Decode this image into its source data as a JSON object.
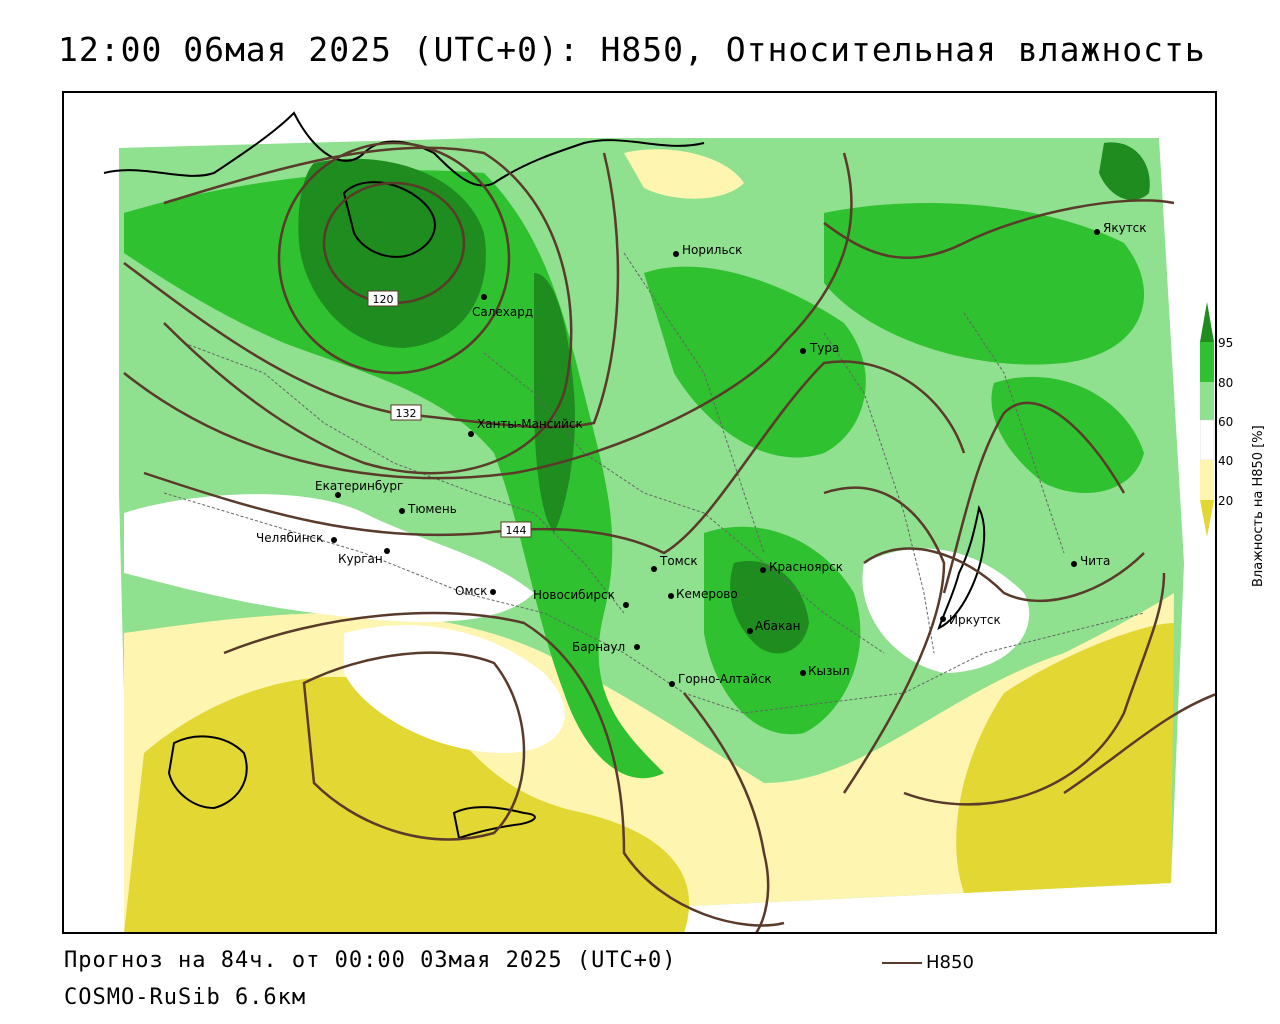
{
  "title": "12:00 06мая 2025 (UTC+0): H850, Относительная влажность",
  "footer": {
    "forecast": "Прогноз на 84ч. от 00:00 03мая 2025 (UTC+0)",
    "model": "COSMO-RuSib 6.6км",
    "line_key_label": "H850"
  },
  "legend": {
    "title": "Влажность на H850 [%]",
    "ticks": [
      "95",
      "80",
      "60",
      "40",
      "20"
    ],
    "colors": {
      "c95": "#1e8c1e",
      "c80": "#2fc12f",
      "c60": "#8fe08f",
      "c40": "#ffffff",
      "c20": "#fdf5b0",
      "c0": "#e3d734"
    }
  },
  "colors": {
    "contour": "#5a3a2a",
    "border": "#666666",
    "coast": "#000000"
  },
  "isolines": {
    "v120": "120",
    "v132": "132",
    "v144": "144"
  },
  "cities": {
    "norilsk": "Норильск",
    "yakutsk": "Якутск",
    "salekhard": "Салехард",
    "tura": "Тура",
    "khanty": "Ханты-Мансийск",
    "ekaterinburg": "Екатеринбург",
    "tyumen": "Тюмень",
    "chelyabinsk": "Челябинск",
    "kurgan": "Курган",
    "omsk": "Омск",
    "novosibirsk": "Новосибирск",
    "tomsk": "Томск",
    "kemerovo": "Кемерово",
    "krasnoyarsk": "Красноярск",
    "abakan": "Абакан",
    "barnaul": "Барнаул",
    "gorno": "Горно-Алтайск",
    "kyzyl": "Кызыл",
    "irkutsk": "Иркутск",
    "chita": "Чита"
  }
}
